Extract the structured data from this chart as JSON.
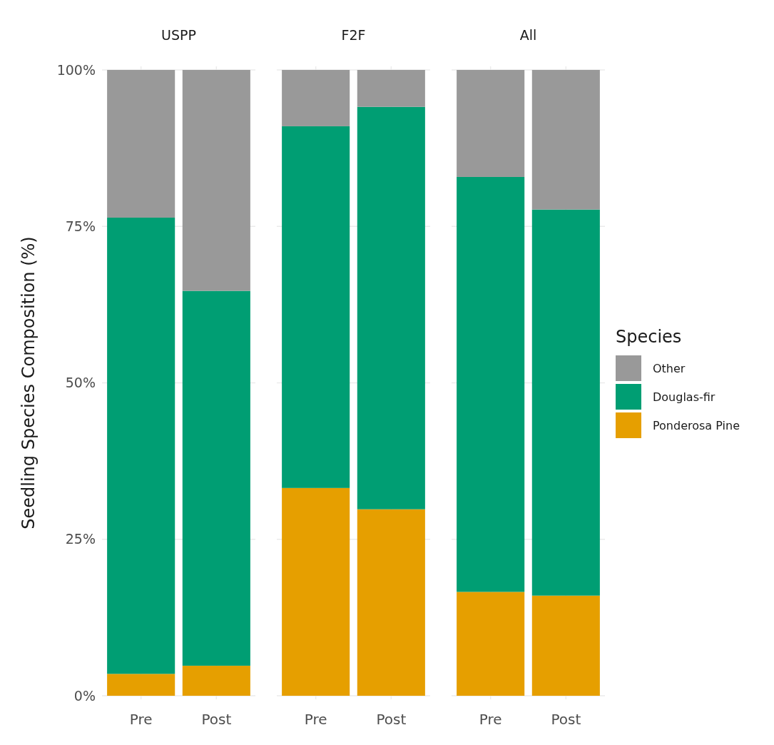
{
  "chart_data": [
    {
      "type": "bar",
      "title": "USPP",
      "ylabel": "Seedling Species Composition (%)",
      "categories": [
        "Pre",
        "Post"
      ],
      "stacked": true,
      "grid": true,
      "legend": false,
      "ylim": [
        0,
        100
      ],
      "yticks": [
        {
          "value": 0,
          "label": "0%"
        },
        {
          "value": 25,
          "label": "25%"
        },
        {
          "value": 50,
          "label": "50%"
        },
        {
          "value": 75,
          "label": "75%"
        },
        {
          "value": 100,
          "label": "100%"
        }
      ],
      "series": [
        {
          "color": "#e69f00",
          "values": [
            3.5,
            4.8
          ]
        },
        {
          "color": "#009e73",
          "values": [
            72.9,
            59.9
          ]
        },
        {
          "color": "#999999",
          "values": [
            23.6,
            35.3
          ]
        }
      ]
    },
    {
      "type": "bar",
      "title": "F2F",
      "categories": [
        "Pre",
        "Post"
      ],
      "stacked": true,
      "grid": true,
      "legend": false,
      "tick_labels": "x",
      "ylim": [
        0,
        100
      ],
      "yticks": [
        {
          "value": 0,
          "label": null
        },
        {
          "value": 25,
          "label": null
        },
        {
          "value": 50,
          "label": null
        },
        {
          "value": 75,
          "label": null
        },
        {
          "value": 100,
          "label": null
        }
      ],
      "series": [
        {
          "color": "#e69f00",
          "values": [
            33.2,
            29.8
          ]
        },
        {
          "color": "#009e73",
          "values": [
            57.8,
            64.3
          ]
        },
        {
          "color": "#999999",
          "values": [
            9.0,
            5.9
          ]
        }
      ]
    },
    {
      "type": "bar",
      "title": "All",
      "categories": [
        "Pre",
        "Post"
      ],
      "stacked": true,
      "grid": true,
      "legend": "right",
      "legend_title": "Species",
      "tick_labels": "x",
      "ylim": [
        0,
        100
      ],
      "yticks": [
        {
          "value": 0,
          "label": null
        },
        {
          "value": 25,
          "label": null
        },
        {
          "value": 50,
          "label": null
        },
        {
          "value": 75,
          "label": null
        },
        {
          "value": 100,
          "label": null
        }
      ],
      "series": [
        {
          "name": "Ponderosa Pine",
          "color": "#e69f00",
          "values": [
            16.6,
            16.0
          ]
        },
        {
          "name": "Douglas-fir",
          "color": "#009e73",
          "values": [
            66.3,
            61.7
          ]
        },
        {
          "name": "Other",
          "color": "#999999",
          "values": [
            17.1,
            22.3
          ]
        }
      ]
    }
  ]
}
